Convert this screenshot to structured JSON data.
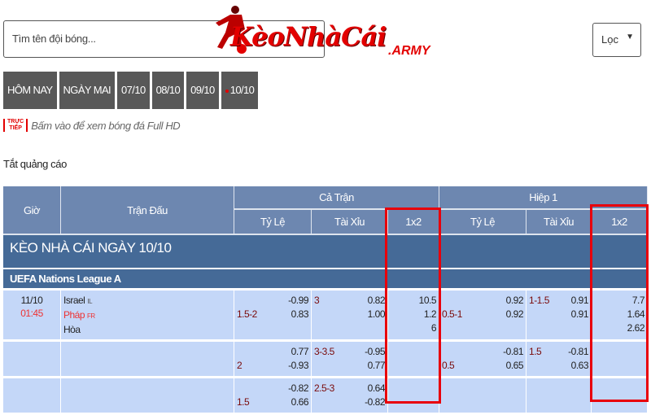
{
  "search": {
    "placeholder": "Tìm tên đội bóng..."
  },
  "logo": {
    "brand": "KèoNhàCái",
    "sub": ".ARMY"
  },
  "filter": {
    "label": "Lọc",
    "caret": "▼"
  },
  "dates": [
    "HÔM NAY",
    "NGÀY MAI",
    "07/10",
    "08/10",
    "09/10",
    "10/10"
  ],
  "live": {
    "badge_top": "TRỰC",
    "badge_bottom": "TIẾP",
    "text": "Bấm vào để xem bóng đá Full HD"
  },
  "ads": "Tắt quảng cáo",
  "table": {
    "headers": {
      "time": "Giờ",
      "match": "Trận Đấu",
      "full": "Cả Trận",
      "half": "Hiệp 1",
      "handicap": "Tỷ Lệ",
      "ou": "Tài Xỉu",
      "x12": "1x2"
    },
    "title": "KÈO NHÀ CÁI NGÀY 10/10",
    "league": "UEFA Nations League A",
    "match": {
      "date": "11/10",
      "time": "01:45",
      "home": "Israel",
      "home_flag": "IL",
      "away": "Pháp",
      "away_flag": "FR",
      "draw": "Hòa"
    },
    "rows": [
      {
        "ft_hdp_line": "1.5-2",
        "ft_hdp_o1": "-0.99",
        "ft_hdp_o2": "0.83",
        "ft_ou_line": "3",
        "ft_ou_o1": "0.82",
        "ft_ou_o2": "1.00",
        "ft_1x2": [
          "10.5",
          "1.2",
          "6"
        ],
        "h1_hdp_line": "0.5-1",
        "h1_hdp_o1": "0.92",
        "h1_hdp_o2": "0.92",
        "h1_ou_line": "1-1.5",
        "h1_ou_o1": "0.91",
        "h1_ou_o2": "0.91",
        "h1_1x2": [
          "7.7",
          "1.64",
          "2.62"
        ]
      },
      {
        "ft_hdp_line": "2",
        "ft_hdp_o1": "0.77",
        "ft_hdp_o2": "-0.93",
        "ft_ou_line": "3-3.5",
        "ft_ou_o1": "-0.95",
        "ft_ou_o2": "0.77",
        "h1_hdp_line": "0.5",
        "h1_hdp_o1": "-0.81",
        "h1_hdp_o2": "0.65",
        "h1_ou_line": "1.5",
        "h1_ou_o1": "-0.81",
        "h1_ou_o2": "0.63"
      },
      {
        "ft_hdp_line": "1.5",
        "ft_hdp_o1": "-0.82",
        "ft_hdp_o2": "0.66",
        "ft_ou_line": "2.5-3",
        "ft_ou_o1": "0.64",
        "ft_ou_o2": "-0.82"
      }
    ]
  },
  "highlight_color": "#e8000b"
}
